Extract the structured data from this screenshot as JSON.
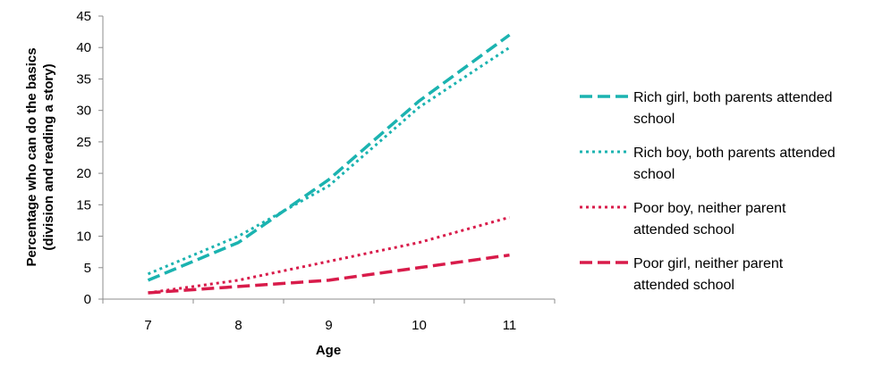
{
  "chart_data": {
    "type": "line",
    "title": "",
    "xlabel": "Age",
    "ylabel_line1": "Percentage who can do the basics",
    "ylabel_line2": "(division and reading a story)",
    "x": [
      7,
      8,
      9,
      10,
      11
    ],
    "x_tick_labels": [
      "7",
      "8",
      "9",
      "10",
      "11"
    ],
    "ylim": [
      0,
      45
    ],
    "y_ticks": [
      0,
      5,
      10,
      15,
      20,
      25,
      30,
      35,
      40,
      45
    ],
    "y_tick_labels": [
      "0",
      "5",
      "10",
      "15",
      "20",
      "25",
      "30",
      "35",
      "40",
      "45"
    ],
    "grid": false,
    "legend_position": "right",
    "series": [
      {
        "key": "rich_girl",
        "name_line1": "Rich girl, both parents attended",
        "name_line2": "school",
        "values": [
          3,
          9,
          19,
          31.5,
          42
        ],
        "color": "#1bb3b0",
        "style": "dashed"
      },
      {
        "key": "rich_boy",
        "name_line1": "Rich boy, both parents attended",
        "name_line2": "school",
        "values": [
          4,
          10,
          18,
          30.5,
          40
        ],
        "color": "#1bb3b0",
        "style": "dotted"
      },
      {
        "key": "poor_boy",
        "name_line1": "Poor boy, neither parent",
        "name_line2": "attended school",
        "values": [
          1,
          3,
          6,
          9,
          13
        ],
        "color": "#d81b4a",
        "style": "dotted"
      },
      {
        "key": "poor_girl",
        "name_line1": "Poor girl, neither parent",
        "name_line2": "attended school",
        "values": [
          1,
          2,
          3,
          5,
          7
        ],
        "color": "#d81b4a",
        "style": "dashed"
      }
    ]
  }
}
